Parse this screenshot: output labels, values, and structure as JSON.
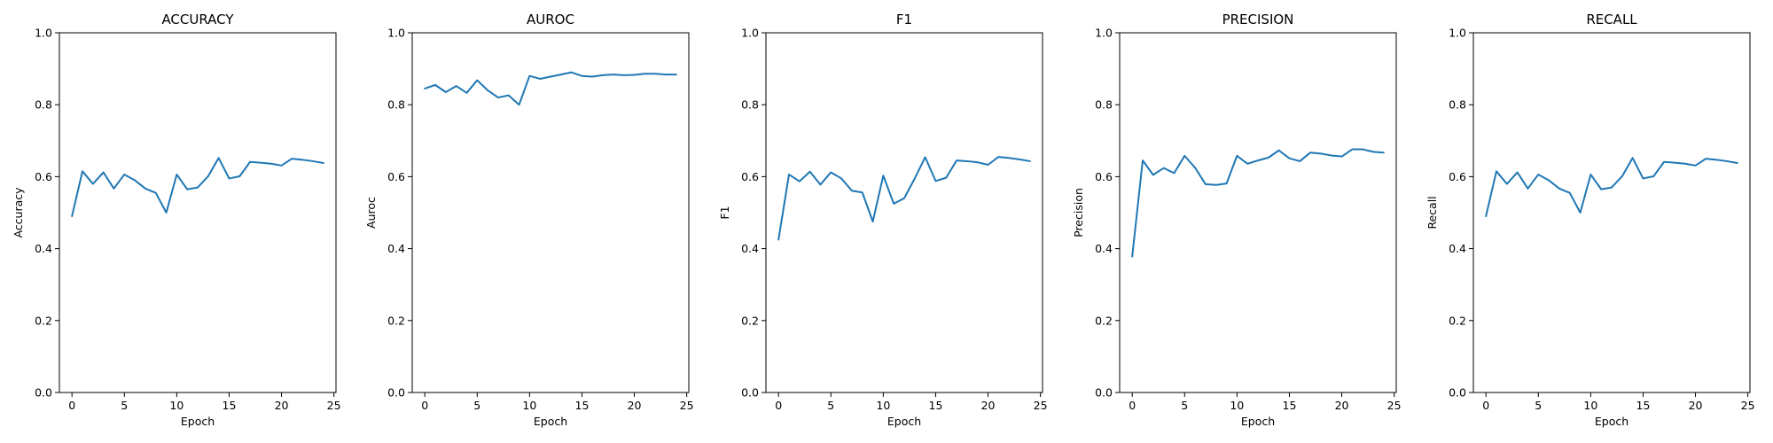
{
  "chart_data": [
    {
      "type": "line",
      "title": "ACCURACY",
      "xlabel": "Epoch",
      "ylabel": "Accuracy",
      "xlim": [
        -1.2,
        25.2
      ],
      "ylim": [
        0.0,
        1.0
      ],
      "xticks": [
        0,
        5,
        10,
        15,
        20,
        25
      ],
      "yticks": [
        0.0,
        0.2,
        0.4,
        0.6,
        0.8,
        1.0
      ],
      "grid": false,
      "color": "#1f77b4",
      "series": [
        {
          "x": [
            0,
            1,
            2,
            3,
            4,
            5,
            6,
            7,
            8,
            9,
            10,
            11,
            12,
            13,
            14,
            15,
            16,
            17,
            18,
            19,
            20,
            21,
            22,
            23,
            24
          ],
          "values": [
            0.49,
            0.615,
            0.58,
            0.612,
            0.567,
            0.606,
            0.59,
            0.567,
            0.555,
            0.5,
            0.606,
            0.565,
            0.57,
            0.601,
            0.652,
            0.595,
            0.601,
            0.641,
            0.639,
            0.636,
            0.631,
            0.65,
            0.647,
            0.643,
            0.638
          ]
        }
      ]
    },
    {
      "type": "line",
      "title": "AUROC",
      "xlabel": "Epoch",
      "ylabel": "Auroc",
      "xlim": [
        -1.2,
        25.2
      ],
      "ylim": [
        0.0,
        1.0
      ],
      "xticks": [
        0,
        5,
        10,
        15,
        20,
        25
      ],
      "yticks": [
        0.0,
        0.2,
        0.4,
        0.6,
        0.8,
        1.0
      ],
      "grid": false,
      "color": "#1f77b4",
      "series": [
        {
          "x": [
            0,
            1,
            2,
            3,
            4,
            5,
            6,
            7,
            8,
            9,
            10,
            11,
            12,
            13,
            14,
            15,
            16,
            17,
            18,
            19,
            20,
            21,
            22,
            23,
            24
          ],
          "values": [
            0.845,
            0.855,
            0.835,
            0.852,
            0.833,
            0.868,
            0.84,
            0.82,
            0.826,
            0.8,
            0.88,
            0.872,
            0.878,
            0.884,
            0.89,
            0.88,
            0.878,
            0.882,
            0.884,
            0.882,
            0.883,
            0.886,
            0.886,
            0.884,
            0.884
          ]
        }
      ]
    },
    {
      "type": "line",
      "title": "F1",
      "xlabel": "Epoch",
      "ylabel": "F1",
      "xlim": [
        -1.2,
        25.2
      ],
      "ylim": [
        0.0,
        1.0
      ],
      "xticks": [
        0,
        5,
        10,
        15,
        20,
        25
      ],
      "yticks": [
        0.0,
        0.2,
        0.4,
        0.6,
        0.8,
        1.0
      ],
      "grid": false,
      "color": "#1f77b4",
      "series": [
        {
          "x": [
            0,
            1,
            2,
            3,
            4,
            5,
            6,
            7,
            8,
            9,
            10,
            11,
            12,
            13,
            14,
            15,
            16,
            17,
            18,
            19,
            20,
            21,
            22,
            23,
            24
          ],
          "values": [
            0.425,
            0.606,
            0.587,
            0.614,
            0.578,
            0.612,
            0.595,
            0.561,
            0.556,
            0.475,
            0.603,
            0.525,
            0.54,
            0.595,
            0.654,
            0.588,
            0.597,
            0.645,
            0.643,
            0.64,
            0.633,
            0.655,
            0.652,
            0.648,
            0.643
          ]
        }
      ]
    },
    {
      "type": "line",
      "title": "PRECISION",
      "xlabel": "Epoch",
      "ylabel": "Precision",
      "xlim": [
        -1.2,
        25.2
      ],
      "ylim": [
        0.0,
        1.0
      ],
      "xticks": [
        0,
        5,
        10,
        15,
        20,
        25
      ],
      "yticks": [
        0.0,
        0.2,
        0.4,
        0.6,
        0.8,
        1.0
      ],
      "grid": false,
      "color": "#1f77b4",
      "series": [
        {
          "x": [
            0,
            1,
            2,
            3,
            4,
            5,
            6,
            7,
            8,
            9,
            10,
            11,
            12,
            13,
            14,
            15,
            16,
            17,
            18,
            19,
            20,
            21,
            22,
            23,
            24
          ],
          "values": [
            0.378,
            0.645,
            0.605,
            0.624,
            0.61,
            0.658,
            0.625,
            0.579,
            0.577,
            0.581,
            0.658,
            0.636,
            0.645,
            0.653,
            0.673,
            0.651,
            0.643,
            0.667,
            0.664,
            0.659,
            0.656,
            0.676,
            0.676,
            0.669,
            0.667
          ]
        }
      ]
    },
    {
      "type": "line",
      "title": "RECALL",
      "xlabel": "Epoch",
      "ylabel": "Recall",
      "xlim": [
        -1.2,
        25.2
      ],
      "ylim": [
        0.0,
        1.0
      ],
      "xticks": [
        0,
        5,
        10,
        15,
        20,
        25
      ],
      "yticks": [
        0.0,
        0.2,
        0.4,
        0.6,
        0.8,
        1.0
      ],
      "grid": false,
      "color": "#1f77b4",
      "series": [
        {
          "x": [
            0,
            1,
            2,
            3,
            4,
            5,
            6,
            7,
            8,
            9,
            10,
            11,
            12,
            13,
            14,
            15,
            16,
            17,
            18,
            19,
            20,
            21,
            22,
            23,
            24
          ],
          "values": [
            0.49,
            0.615,
            0.58,
            0.612,
            0.567,
            0.606,
            0.59,
            0.567,
            0.555,
            0.5,
            0.606,
            0.565,
            0.57,
            0.601,
            0.652,
            0.595,
            0.601,
            0.641,
            0.639,
            0.636,
            0.631,
            0.65,
            0.647,
            0.643,
            0.638
          ]
        }
      ]
    }
  ]
}
